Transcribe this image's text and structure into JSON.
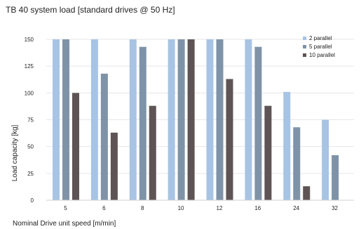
{
  "chart_data": {
    "type": "bar",
    "title": "TB 40 system load [standard drives @ 50 Hz]",
    "xlabel": "Nominal Drive unit speed [m/min]",
    "ylabel": "Load capacity [kg]",
    "categories": [
      "5",
      "6",
      "8",
      "10",
      "12",
      "16",
      "24",
      "32"
    ],
    "ylim": [
      0,
      150
    ],
    "yticks": [
      0,
      25,
      50,
      75,
      100,
      125,
      150
    ],
    "grid": true,
    "legend_position": "top-right",
    "series": [
      {
        "name": "2 parallel",
        "color": "#a8c4e4",
        "values": [
          150,
          150,
          150,
          150,
          150,
          150,
          101,
          75
        ]
      },
      {
        "name": "5 parallel",
        "color": "#7f93a8",
        "values": [
          150,
          118,
          143,
          150,
          150,
          143,
          68,
          42
        ]
      },
      {
        "name": "10 parallel",
        "color": "#5e5455",
        "values": [
          100,
          63,
          88,
          150,
          113,
          88,
          13,
          null
        ]
      }
    ]
  }
}
